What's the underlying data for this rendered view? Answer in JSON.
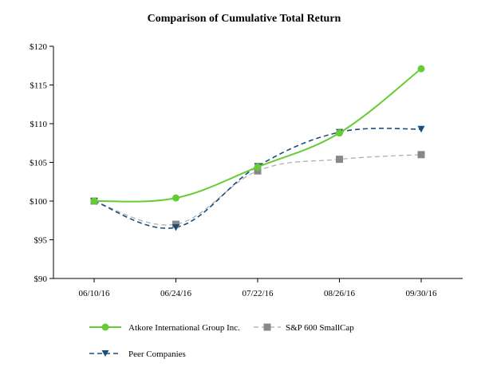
{
  "chart_data": {
    "type": "line",
    "title": "Comparison of Cumulative Total Return",
    "xlabel": "",
    "ylabel": "",
    "categories": [
      "06/10/16",
      "06/24/16",
      "07/22/16",
      "08/26/16",
      "09/30/16"
    ],
    "y_ticks": [
      "$90",
      "$95",
      "$100",
      "$105",
      "$110",
      "$115",
      "$120"
    ],
    "ylim": [
      90,
      120
    ],
    "grid": false,
    "legend_position": "bottom",
    "series": [
      {
        "name": "Atkore International Group Inc.",
        "values": [
          100.0,
          100.4,
          104.4,
          108.8,
          117.1
        ],
        "color": "#66cc33",
        "line_style": "solid",
        "marker": "circle"
      },
      {
        "name": "S&P 600 SmallCap",
        "values": [
          100.0,
          97.0,
          103.9,
          105.4,
          106.0
        ],
        "color": "#aaaaaa",
        "line_style": "dashed",
        "marker": "square",
        "marker_color": "#888888"
      },
      {
        "name": "Peer Companies",
        "values": [
          100.0,
          96.6,
          104.5,
          108.9,
          109.3
        ],
        "color": "#1b4d7a",
        "line_style": "dashed",
        "marker": "triangle-down"
      }
    ]
  }
}
